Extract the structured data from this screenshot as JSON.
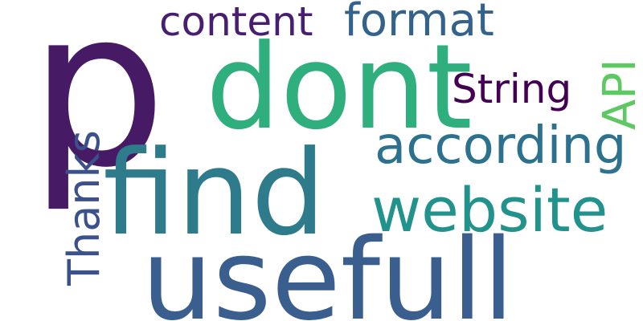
{
  "cloud": {
    "words": [
      {
        "id": "p",
        "text": "p",
        "color": "#471a66"
      },
      {
        "id": "dont",
        "text": "dont",
        "color": "#2eaf7d"
      },
      {
        "id": "find",
        "text": "find",
        "color": "#2e7b8c"
      },
      {
        "id": "usefull",
        "text": "usefull",
        "color": "#3a5f8e"
      },
      {
        "id": "website",
        "text": "website",
        "color": "#21928c"
      },
      {
        "id": "according",
        "text": "according",
        "color": "#2c728e"
      },
      {
        "id": "format",
        "text": "format",
        "color": "#33638d"
      },
      {
        "id": "content",
        "text": "content",
        "color": "#481f70"
      },
      {
        "id": "string",
        "text": "String",
        "color": "#440154"
      },
      {
        "id": "thanks",
        "text": "Thanks",
        "color": "#3b518b"
      },
      {
        "id": "api",
        "text": "API",
        "color": "#5ec962"
      }
    ]
  }
}
